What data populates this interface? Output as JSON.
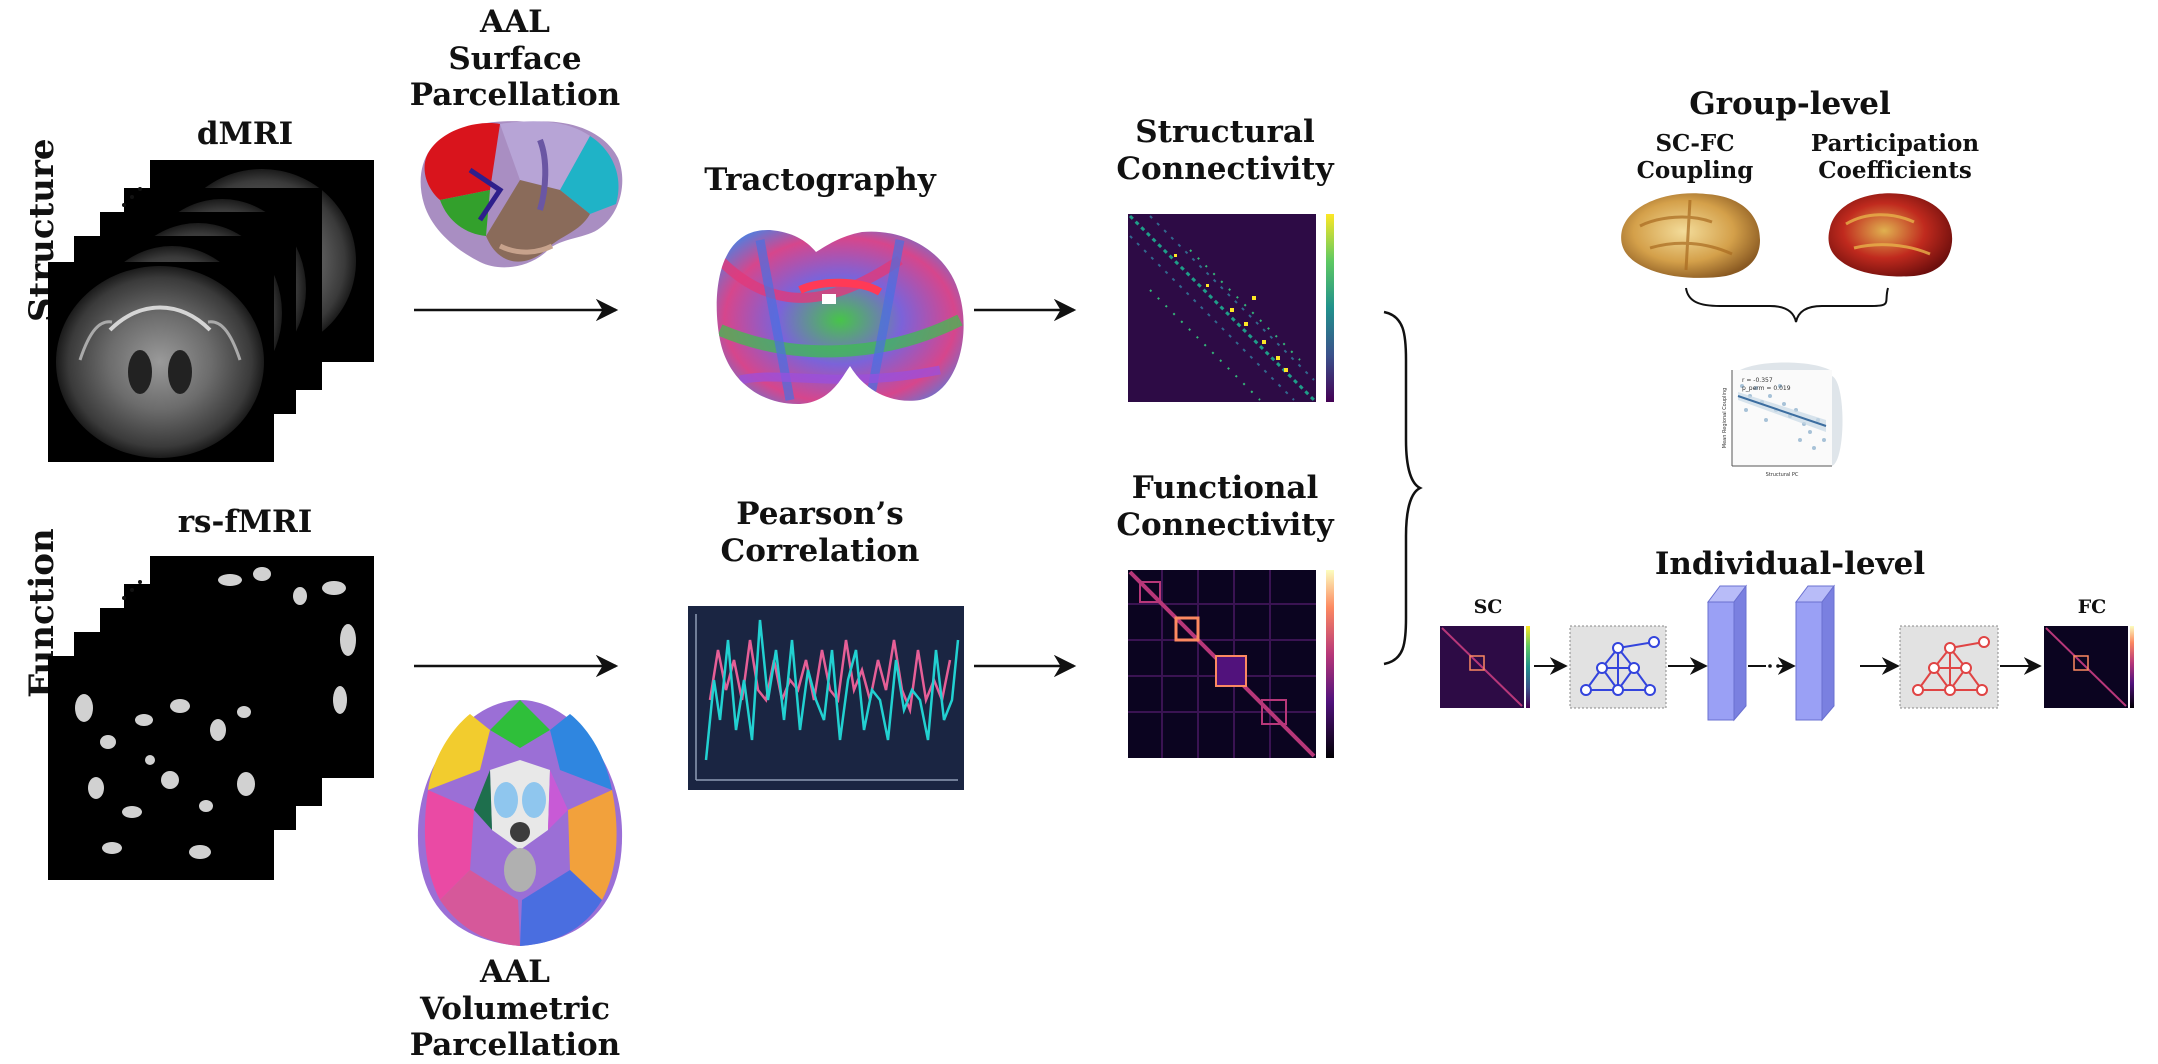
{
  "rows": {
    "structure": "Structure",
    "function": "Function"
  },
  "inputs": {
    "dmri": "dMRI",
    "rsfmri": "rs-fMRI"
  },
  "parcellations": {
    "surface": [
      "AAL",
      "Surface",
      "Parcellation"
    ],
    "volumetric": [
      "AAL",
      "Volumetric",
      "Parcellation"
    ]
  },
  "methods": {
    "tractography": "Tractography",
    "pearson": [
      "Pearson’s",
      "Correlation"
    ]
  },
  "connectivity": {
    "structural": [
      "Structural",
      "Connectivity"
    ],
    "functional": [
      "Functional",
      "Connectivity"
    ]
  },
  "group_level": {
    "title": "Group-level",
    "coupling": [
      "SC-FC",
      "Coupling"
    ],
    "participation": [
      "Participation",
      "Coefficients"
    ],
    "scatter": {
      "annot_r": "r = -0.357",
      "annot_p": "p_perm = 0.019",
      "xlabel": "Structural PC",
      "ylabel": "Mean Regional Coupling"
    }
  },
  "individual_level": {
    "title": "Individual-level",
    "sc": "SC",
    "fc": "FC"
  },
  "colors": {
    "matrix_bg": "#2d0b45",
    "layer_fill": "#9aa0f5",
    "graph_in": "#3344dd",
    "graph_out": "#e04444",
    "graph_box": "#e2e2e2"
  },
  "icons": [
    "arrow-icon",
    "brace-icon",
    "brain-icon",
    "graph-icon",
    "layer-icon"
  ]
}
